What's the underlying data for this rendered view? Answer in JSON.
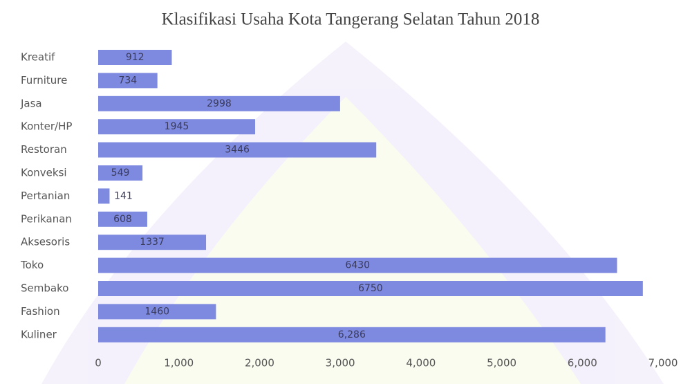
{
  "chart_data": {
    "type": "bar",
    "orientation": "horizontal",
    "title": "Klasifikasi Usaha Kota Tangerang Selatan Tahun 2018",
    "categories": [
      "Kreatif",
      "Furniture",
      "Jasa",
      "Konter/HP",
      "Restoran",
      "Konveksi",
      "Pertanian",
      "Perikanan",
      "Aksesoris",
      "Toko",
      "Sembako",
      "Fashion",
      "Kuliner"
    ],
    "values": [
      912,
      734,
      2998,
      1945,
      3446,
      549,
      141,
      608,
      1337,
      6430,
      6750,
      1460,
      6286
    ],
    "value_labels": [
      "912",
      "734",
      "2998",
      "1945",
      "3446",
      "549",
      "141",
      "608",
      "1337",
      "6430",
      "6750",
      "1460",
      "6,286"
    ],
    "color": "#7d8ae0",
    "xlim": [
      0,
      7000
    ],
    "xticks": [
      0,
      {
        "value": 1000,
        "label": "1,000"
      },
      {
        "value": 2000,
        "label": "2,000"
      },
      {
        "value": 3000,
        "label": "3,000"
      },
      {
        "value": 4000,
        "label": "4,000"
      },
      {
        "value": 5000,
        "label": "5,000"
      },
      {
        "value": 6000,
        "label": "6,000"
      },
      {
        "value": 7000,
        "label": "7,000"
      }
    ]
  }
}
